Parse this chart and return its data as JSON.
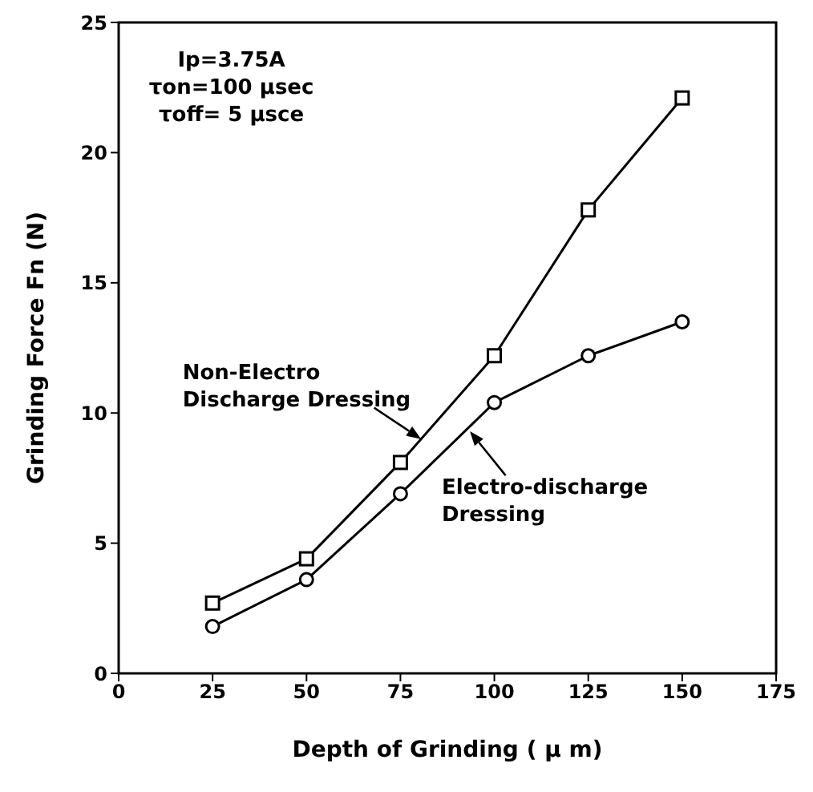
{
  "chart_data": {
    "type": "line",
    "xlabel": "Depth of Grinding ( μ m)",
    "ylabel": "Grinding Force  Fn (N)",
    "x": [
      25,
      50,
      75,
      100,
      125,
      150
    ],
    "xlim": [
      0,
      175
    ],
    "xticks": [
      0,
      25,
      50,
      75,
      100,
      125,
      150,
      175
    ],
    "ylim": [
      0,
      25
    ],
    "yticks": [
      0,
      5,
      10,
      15,
      20,
      25
    ],
    "line_style": "solid",
    "series": [
      {
        "name": "Non-Electro\nDischarge Dressing",
        "color": "#000000",
        "marker": "square",
        "values": [
          2.7,
          4.4,
          8.1,
          12.2,
          17.8,
          22.1
        ]
      },
      {
        "name": "Electro-discharge\nDressing",
        "color": "#000000",
        "marker": "circle",
        "values": [
          1.8,
          3.6,
          6.9,
          10.4,
          12.2,
          13.5
        ]
      }
    ],
    "annotations": [
      "Ip=3.75A",
      "τon=100 μsec",
      "τoff= 5 μsce"
    ]
  }
}
